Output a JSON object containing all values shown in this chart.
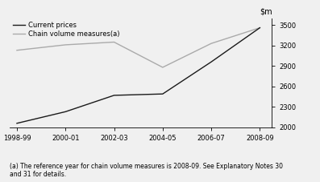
{
  "x_labels": [
    "1998-99",
    "2000-01",
    "2002-03",
    "2004-05",
    "2006-07",
    "2008-09"
  ],
  "x_values": [
    0,
    2,
    4,
    6,
    8,
    10
  ],
  "current_prices": [
    2060,
    2230,
    2470,
    2490,
    2960,
    3460
  ],
  "chain_volume": [
    3130,
    3210,
    3250,
    2880,
    3230,
    3460
  ],
  "current_prices_color": "#1a1a1a",
  "chain_volume_color": "#aaaaaa",
  "ylim": [
    2000,
    3600
  ],
  "yticks": [
    2000,
    2300,
    2600,
    2900,
    3200,
    3500
  ],
  "legend_current": "Current prices",
  "legend_chain": "Chain volume measures(a)",
  "footnote": "(a) The reference year for chain volume measures is 2008-09. See Explanatory Notes 30\nand 31 for details.",
  "line_width": 1.0,
  "bg_color": "#f0f0f0"
}
